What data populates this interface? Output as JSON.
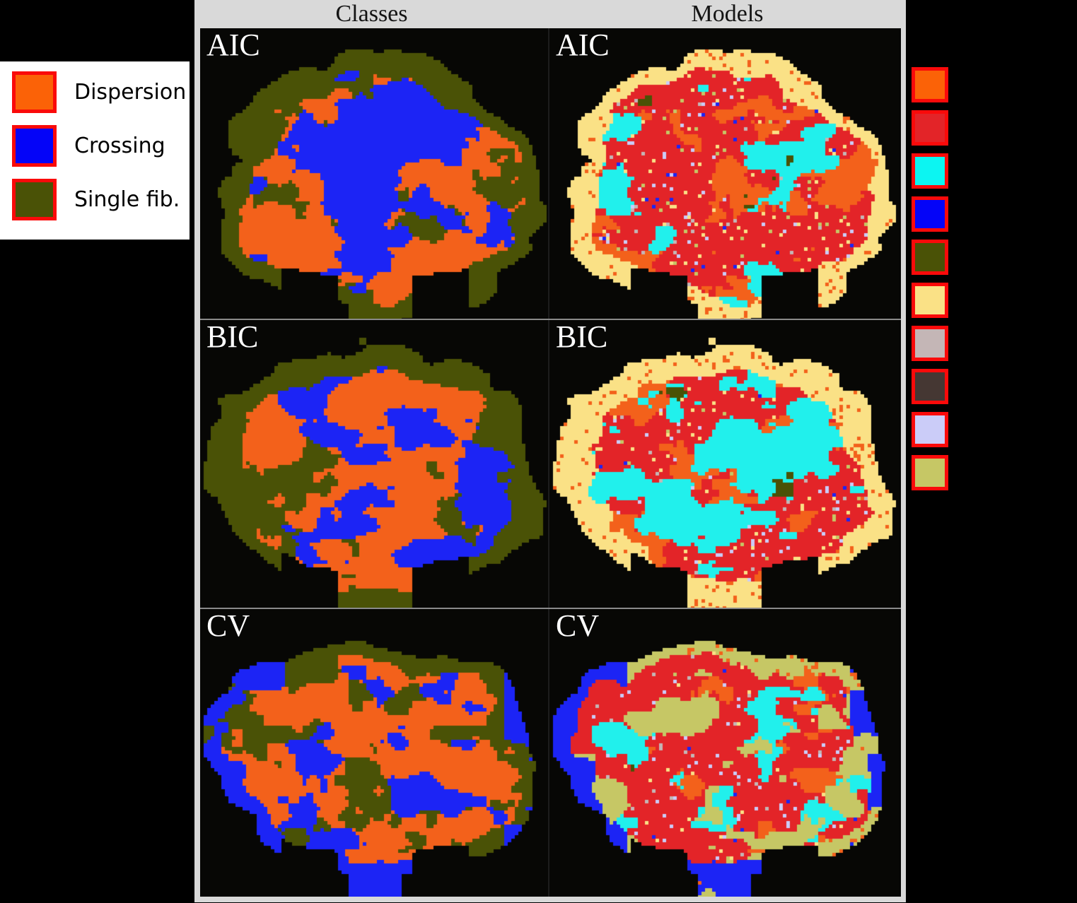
{
  "figure": {
    "column_headers": [
      {
        "label": "Classes"
      },
      {
        "label": "Models"
      }
    ],
    "rows": [
      {
        "label": "AIC"
      },
      {
        "label": "BIC"
      },
      {
        "label": "CV"
      }
    ]
  },
  "class_legend": {
    "items": [
      {
        "label": "Dispersion",
        "color": "#fb6207"
      },
      {
        "label": "Crossing",
        "color": "#0404f8"
      },
      {
        "label": "Single fib.",
        "color": "#4a5206"
      }
    ]
  },
  "model_legend": {
    "swatch_colors": [
      "#fb6207",
      "#e32428",
      "#0cf5f2",
      "#0404f8",
      "#4a5206",
      "#fae186",
      "#c4b6b6",
      "#453733",
      "#cbccf8",
      "#c6c765"
    ]
  },
  "palette": {
    "background": "#000000",
    "panel_background": "#070705",
    "frame": "#d9d9d9",
    "swatch_border": "#fa0a0a",
    "header_text": "#141414",
    "panel_label_text": "#ffffff",
    "dispersion_orange": "#f3611b",
    "crossing_blue": "#1c24f5",
    "single_fiber_olive": "#4a5206",
    "model_red": "#e32428",
    "model_cyan": "#21f0ec",
    "model_cream": "#fae186",
    "model_gray": "#c4b6b6",
    "model_brown": "#453733",
    "model_lavender": "#cbccf8",
    "model_khaki": "#c6c765"
  }
}
